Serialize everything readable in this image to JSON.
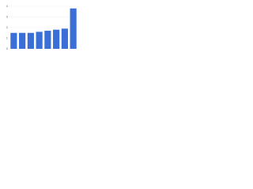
{
  "chart_data": {
    "type": "bar",
    "categories": [
      null,
      null,
      null,
      null,
      null,
      null,
      null,
      null
    ],
    "values": [
      1.5,
      1.5,
      1.5,
      1.6,
      1.7,
      1.8,
      1.9,
      3.8
    ],
    "color": "#3a6fd8",
    "ylim": [
      0,
      4
    ],
    "yticks": [
      0,
      1,
      2,
      3,
      4
    ],
    "grid": true
  }
}
